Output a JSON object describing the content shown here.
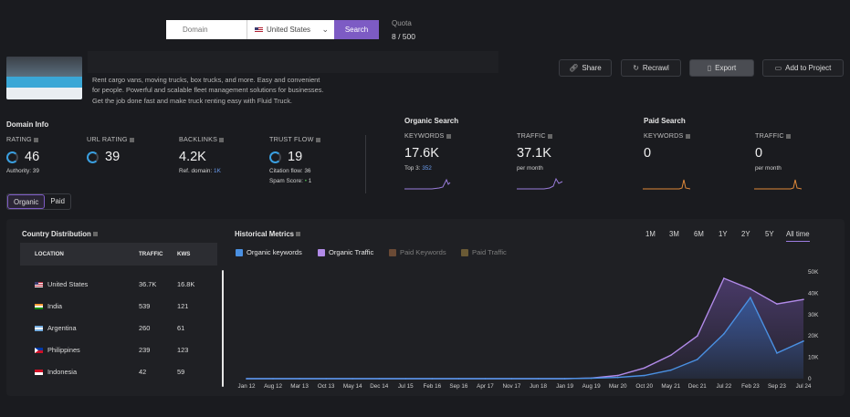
{
  "search": {
    "placeholder": "Domain",
    "country": "United States",
    "button": "Search"
  },
  "quota": {
    "label": "Quota",
    "value": "8 / 500"
  },
  "site": {
    "description_lines": [
      "Rent cargo vans, moving trucks, box trucks, and more. Easy and convenient",
      "for people. Powerful and scalable fleet management solutions for businesses.",
      "Get the job done fast and make truck renting easy with Fluid Truck."
    ]
  },
  "actions": {
    "share": "Share",
    "recrawl": "Recrawl",
    "export": "Export",
    "add_to_project": "Add to Project"
  },
  "domain_info": {
    "title": "Domain Info",
    "rating": {
      "label": "RATING",
      "value": "46",
      "sub": "Authority: 39"
    },
    "url_rating": {
      "label": "URL RATING",
      "value": "39"
    },
    "backlinks": {
      "label": "BACKLINKS",
      "value": "4.2K",
      "sub_label": "Ref. domain:",
      "sub_value": "1K"
    },
    "trust_flow": {
      "label": "TRUST FLOW",
      "value": "19",
      "sub1": "Citation flow: 36",
      "sub2_label": "Spam Score:",
      "sub2_value": "1"
    }
  },
  "organic_search": {
    "title": "Organic Search",
    "keywords": {
      "label": "KEYWORDS",
      "value": "17.6K",
      "sub_label": "Top 3:",
      "sub_value": "352"
    },
    "traffic": {
      "label": "TRAFFIC",
      "value": "37.1K",
      "sub": "per month"
    }
  },
  "paid_search": {
    "title": "Paid Search",
    "keywords": {
      "label": "KEYWORDS",
      "value": "0"
    },
    "traffic": {
      "label": "TRAFFIC",
      "value": "0",
      "sub": "per month"
    }
  },
  "toggle": {
    "organic": "Organic",
    "paid": "Paid"
  },
  "country_distribution": {
    "title": "Country Distribution",
    "columns": [
      "LOCATION",
      "TRAFFIC",
      "KWS"
    ],
    "rows": [
      {
        "country": "United States",
        "traffic": "36.7K",
        "kws": "16.8K",
        "flag": "us"
      },
      {
        "country": "India",
        "traffic": "539",
        "kws": "121",
        "flag": "in"
      },
      {
        "country": "Argentina",
        "traffic": "260",
        "kws": "61",
        "flag": "ar"
      },
      {
        "country": "Philippines",
        "traffic": "239",
        "kws": "123",
        "flag": "ph"
      },
      {
        "country": "Indonesia",
        "traffic": "42",
        "kws": "59",
        "flag": "id"
      }
    ]
  },
  "historical": {
    "title": "Historical Metrics",
    "ranges": [
      "1M",
      "3M",
      "6M",
      "1Y",
      "2Y",
      "5Y",
      "All time"
    ],
    "selected_range": "All time",
    "legend": [
      {
        "label": "Organic keywords",
        "color": "#4a90e2",
        "checked": true
      },
      {
        "label": "Organic Traffic",
        "color": "#b18ae8",
        "checked": true
      },
      {
        "label": "Paid Keywords",
        "color": "#8a5a3a",
        "checked": false
      },
      {
        "label": "Paid Traffic",
        "color": "#8a7040",
        "checked": false
      }
    ]
  },
  "chart_data": {
    "type": "line",
    "x": [
      "Jan 12",
      "Aug 12",
      "Mar 13",
      "Oct 13",
      "May 14",
      "Dec 14",
      "Jul 15",
      "Feb 16",
      "Sep 16",
      "Apr 17",
      "Nov 17",
      "Jun 18",
      "Jan 19",
      "Aug 19",
      "Mar 20",
      "Oct 20",
      "May 21",
      "Dec 21",
      "Jul 22",
      "Feb 23",
      "Sep 23",
      "Jul 24"
    ],
    "ylim": [
      0,
      50000
    ],
    "yticks": [
      "0",
      "10K",
      "20K",
      "30K",
      "40K",
      "50K"
    ],
    "series": [
      {
        "name": "Organic Traffic",
        "color": "#b18ae8",
        "values": [
          0,
          0,
          0,
          0,
          0,
          0,
          0,
          0,
          0,
          0,
          0,
          0,
          0,
          300,
          1500,
          5000,
          11000,
          20000,
          47000,
          42000,
          35000,
          37100
        ]
      },
      {
        "name": "Organic keywords",
        "color": "#4a90e2",
        "values": [
          0,
          0,
          0,
          0,
          0,
          0,
          0,
          0,
          0,
          0,
          0,
          0,
          0,
          200,
          600,
          1500,
          4000,
          9000,
          21000,
          38000,
          12000,
          17600
        ]
      }
    ]
  }
}
